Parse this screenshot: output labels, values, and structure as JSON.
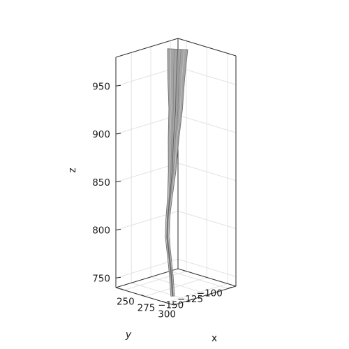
{
  "chart_data": {
    "type": "surface3d",
    "title": "",
    "xlabel": "x",
    "ylabel": "y",
    "zlabel": "z",
    "xlim": [
      240,
      310
    ],
    "ylim": [
      -170,
      -90
    ],
    "zlim": [
      740,
      980
    ],
    "xticks": [
      250,
      275,
      300
    ],
    "yticks": [
      -100,
      -125,
      -150
    ],
    "zticks": [
      750,
      800,
      850,
      900,
      950
    ],
    "xtick_labels": [
      "250",
      "275",
      "300"
    ],
    "ytick_labels": [
      "−100",
      "−125",
      "−150"
    ],
    "ztick_labels": [
      "750",
      "800",
      "850",
      "900",
      "950"
    ],
    "grid": true,
    "surface_color": "#9a9a9a",
    "series": [
      {
        "points": [
          {
            "x": 248,
            "y": -99,
            "z": 973
          },
          {
            "x": 251,
            "y": -104,
            "z": 945
          },
          {
            "x": 255,
            "y": -109,
            "z": 915
          },
          {
            "x": 258,
            "y": -115,
            "z": 885
          },
          {
            "x": 262,
            "y": -121,
            "z": 855
          },
          {
            "x": 264,
            "y": -126,
            "z": 830
          },
          {
            "x": 266,
            "y": -131,
            "z": 808
          },
          {
            "x": 272,
            "y": -138,
            "z": 793
          },
          {
            "x": 282,
            "y": -146,
            "z": 778
          },
          {
            "x": 293,
            "y": -155,
            "z": 762
          },
          {
            "x": 303,
            "y": -164,
            "z": 746
          }
        ]
      }
    ]
  }
}
